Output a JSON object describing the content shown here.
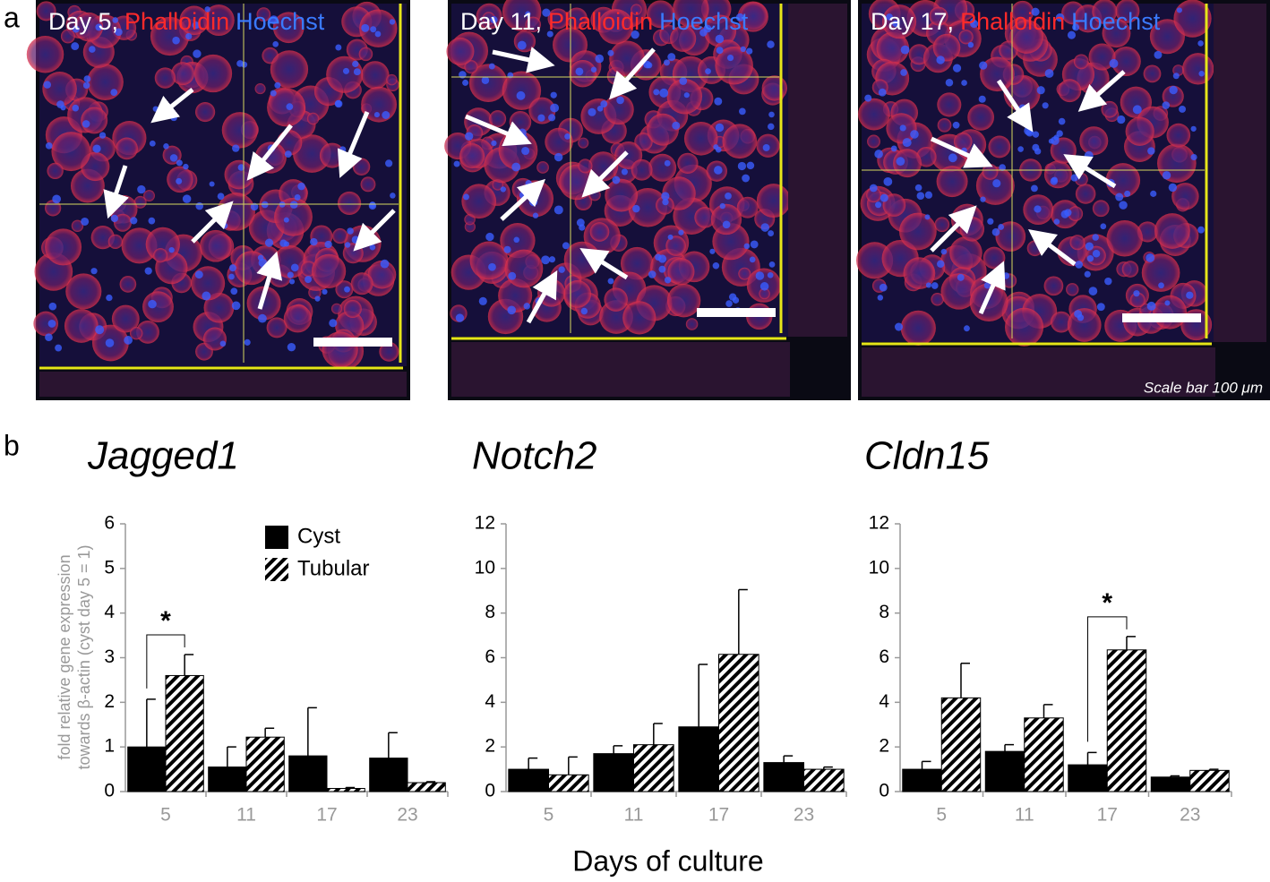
{
  "figure": {
    "panel_a": "a",
    "panel_b": "b",
    "images": [
      {
        "day": "Day 5,",
        "stain1": "Phalloidin",
        "stain2": "Hoechst"
      },
      {
        "day": "Day 11,",
        "stain1": "Phalloidin",
        "stain2": "Hoechst"
      },
      {
        "day": "Day 17,",
        "stain1": "Phalloidin",
        "stain2": "Hoechst"
      }
    ],
    "scale_bar": "Scale bar 100 μm",
    "y_label": [
      "fold relative gene expression",
      "towards β-actin (cyst day 5 = 1)"
    ],
    "x_label": "Days of culture"
  },
  "chart_data": [
    {
      "type": "bar",
      "title": "Jagged1",
      "categories": [
        "5",
        "11",
        "17",
        "23"
      ],
      "series": [
        {
          "name": "Cyst",
          "color": "#000000",
          "values": [
            1.0,
            0.55,
            0.8,
            0.75
          ],
          "errors": [
            1.07,
            0.45,
            1.08,
            0.57
          ]
        },
        {
          "name": "Tubular",
          "color": "#000000",
          "hatch": true,
          "values": [
            2.6,
            1.22,
            0.07,
            0.2
          ],
          "errors": [
            0.47,
            0.2,
            0.02,
            0.02
          ]
        }
      ],
      "ylim": [
        0,
        6
      ],
      "yticks": [
        0,
        1,
        2,
        3,
        4,
        5,
        6
      ],
      "significance": [
        {
          "label": "*",
          "category": "5"
        }
      ]
    },
    {
      "type": "bar",
      "title": "Notch2",
      "categories": [
        "5",
        "11",
        "17",
        "23"
      ],
      "series": [
        {
          "color": "#000000",
          "values": [
            1.0,
            1.7,
            2.9,
            1.3
          ],
          "errors": [
            0.5,
            0.35,
            2.8,
            0.3
          ]
        },
        {
          "color": "#000000",
          "hatch": true,
          "values": [
            0.75,
            2.1,
            6.15,
            1.0
          ],
          "errors": [
            0.8,
            0.95,
            2.9,
            0.1
          ]
        }
      ],
      "ylim": [
        0,
        12
      ],
      "yticks": [
        0,
        2,
        4,
        6,
        8,
        10,
        12
      ]
    },
    {
      "type": "bar",
      "title": "Cldn15",
      "categories": [
        "5",
        "11",
        "17",
        "23"
      ],
      "series": [
        {
          "color": "#000000",
          "values": [
            1.0,
            1.8,
            1.2,
            0.65
          ],
          "errors": [
            0.35,
            0.3,
            0.55,
            0.05
          ]
        },
        {
          "color": "#000000",
          "hatch": true,
          "values": [
            4.2,
            3.3,
            6.35,
            0.95
          ],
          "errors": [
            1.55,
            0.6,
            0.6,
            0.05
          ]
        }
      ],
      "ylim": [
        0,
        12
      ],
      "yticks": [
        0,
        2,
        4,
        6,
        8,
        10,
        12
      ],
      "significance": [
        {
          "label": "*",
          "category": "17"
        }
      ]
    }
  ]
}
